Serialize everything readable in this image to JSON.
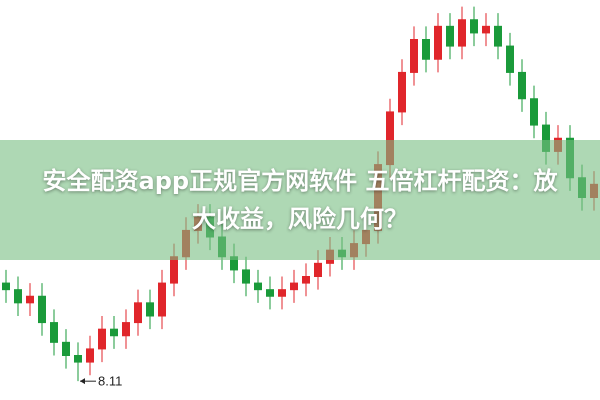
{
  "chart_data": {
    "type": "candlestick",
    "title_lines": [
      "安全配资app正规官方网软件 五倍杠杆配资：放",
      "大收益，风险几何？"
    ],
    "up_color": "#e0262b",
    "down_color": "#1a9a3a",
    "ylim": [
      7.9,
      13.9
    ],
    "open": [
      9.6,
      9.5,
      9.3,
      9.4,
      9.0,
      8.7,
      8.5,
      8.4,
      8.6,
      8.9,
      8.8,
      9.0,
      9.3,
      9.1,
      9.6,
      10.0,
      10.4,
      10.6,
      10.3,
      10.0,
      9.8,
      9.6,
      9.5,
      9.4,
      9.5,
      9.6,
      9.7,
      9.9,
      10.1,
      10.0,
      10.2,
      10.4,
      11.4,
      12.2,
      12.8,
      13.3,
      13.0,
      13.5,
      13.2,
      13.6,
      13.4,
      13.5,
      13.2,
      12.8,
      12.4,
      12.0,
      11.6,
      11.8,
      11.2,
      10.9
    ],
    "high": [
      9.8,
      9.7,
      9.6,
      9.6,
      9.2,
      8.9,
      8.7,
      8.8,
      9.1,
      9.1,
      9.2,
      9.5,
      9.5,
      9.8,
      10.2,
      10.6,
      10.8,
      10.8,
      10.5,
      10.2,
      10.0,
      9.8,
      9.7,
      9.7,
      9.8,
      9.9,
      10.1,
      10.3,
      10.3,
      10.4,
      10.6,
      11.6,
      12.4,
      13.0,
      13.5,
      13.5,
      13.7,
      13.7,
      13.8,
      13.8,
      13.7,
      13.7,
      13.4,
      13.0,
      12.6,
      12.2,
      12.0,
      12.0,
      11.4,
      11.3
    ],
    "low": [
      9.3,
      9.1,
      9.1,
      8.8,
      8.5,
      8.3,
      8.11,
      8.2,
      8.4,
      8.6,
      8.6,
      8.8,
      8.9,
      8.9,
      9.4,
      9.8,
      10.2,
      10.1,
      9.8,
      9.6,
      9.4,
      9.3,
      9.2,
      9.2,
      9.3,
      9.4,
      9.5,
      9.7,
      9.8,
      9.8,
      10.0,
      10.2,
      11.2,
      12.0,
      12.6,
      12.8,
      12.8,
      13.0,
      13.0,
      13.2,
      13.2,
      13.0,
      12.6,
      12.2,
      11.8,
      11.4,
      11.4,
      11.0,
      10.7,
      10.7
    ],
    "close": [
      9.5,
      9.3,
      9.4,
      9.0,
      8.7,
      8.5,
      8.4,
      8.6,
      8.9,
      8.8,
      9.0,
      9.3,
      9.1,
      9.6,
      10.0,
      10.4,
      10.6,
      10.3,
      10.0,
      9.8,
      9.6,
      9.5,
      9.4,
      9.5,
      9.6,
      9.7,
      9.9,
      10.1,
      10.0,
      10.2,
      10.4,
      11.4,
      12.2,
      12.8,
      13.3,
      13.0,
      13.5,
      13.2,
      13.6,
      13.4,
      13.5,
      13.2,
      12.8,
      12.4,
      12.0,
      11.6,
      11.8,
      11.2,
      10.9,
      11.1
    ]
  }
}
